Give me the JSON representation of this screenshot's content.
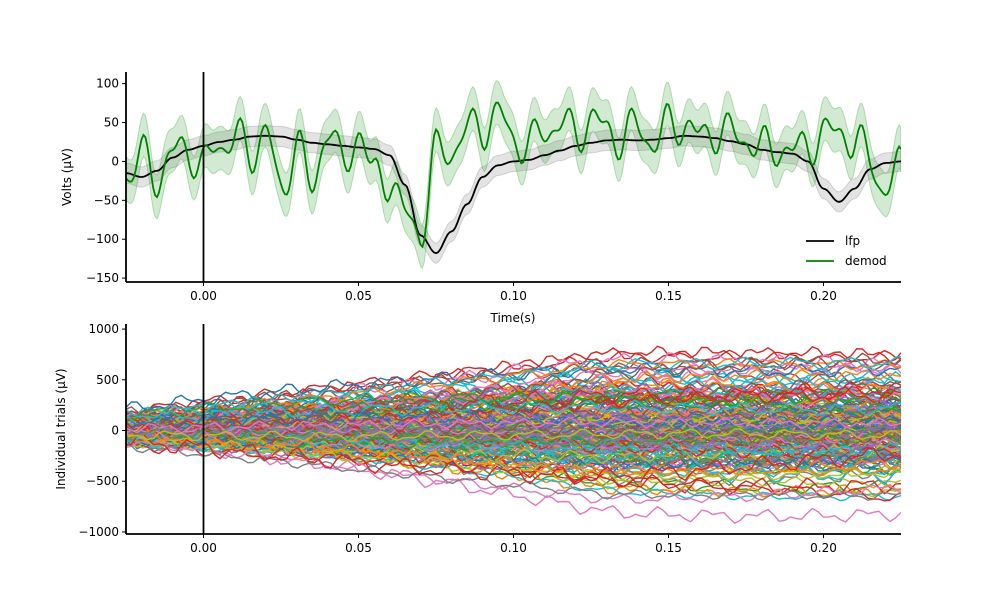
{
  "chart_data": [
    {
      "type": "line",
      "title": "",
      "xlabel": "Time(s)",
      "ylabel": "Volts (μV)",
      "xlim": [
        -0.025,
        0.225
      ],
      "ylim": [
        -155,
        115
      ],
      "xticks": [
        0.0,
        0.05,
        0.1,
        0.15,
        0.2
      ],
      "xtick_labels": [
        "0.00",
        "0.05",
        "0.10",
        "0.15",
        "0.20"
      ],
      "yticks": [
        100,
        50,
        0,
        -50,
        -100,
        -150
      ],
      "ytick_labels": [
        "100",
        "50",
        "0",
        "−50",
        "−100",
        "−150"
      ],
      "vline_x": 0.0,
      "legend_position": "lower-right",
      "grid": false,
      "series": [
        {
          "name": "lfp",
          "color": "#000000",
          "band_color": "#808080",
          "band_width": 13,
          "x": [
            -0.025,
            -0.02,
            -0.015,
            -0.01,
            -0.005,
            0.0,
            0.005,
            0.01,
            0.015,
            0.02,
            0.025,
            0.03,
            0.035,
            0.04,
            0.045,
            0.05,
            0.055,
            0.06,
            0.065,
            0.07,
            0.075,
            0.08,
            0.085,
            0.09,
            0.095,
            0.1,
            0.105,
            0.11,
            0.115,
            0.12,
            0.125,
            0.13,
            0.135,
            0.14,
            0.145,
            0.15,
            0.155,
            0.16,
            0.165,
            0.17,
            0.175,
            0.18,
            0.185,
            0.19,
            0.195,
            0.2,
            0.205,
            0.21,
            0.215,
            0.22,
            0.225
          ],
          "values": [
            -15,
            -20,
            -12,
            5,
            15,
            20,
            25,
            28,
            32,
            33,
            32,
            28,
            24,
            22,
            20,
            18,
            16,
            8,
            -30,
            -95,
            -118,
            -90,
            -55,
            -20,
            -5,
            0,
            2,
            8,
            14,
            20,
            24,
            27,
            28,
            27,
            28,
            30,
            33,
            32,
            30,
            26,
            22,
            15,
            12,
            10,
            0,
            -35,
            -52,
            -35,
            -10,
            -2,
            0
          ]
        },
        {
          "name": "demod",
          "color": "#008000",
          "band_color": "#2ca02c",
          "band_width": 28,
          "x": [
            -0.025,
            -0.02,
            -0.015,
            -0.01,
            -0.005,
            0.0,
            0.005,
            0.01,
            0.015,
            0.02,
            0.025,
            0.03,
            0.035,
            0.04,
            0.045,
            0.05,
            0.055,
            0.06,
            0.065,
            0.07,
            0.075,
            0.08,
            0.085,
            0.09,
            0.095,
            0.1,
            0.105,
            0.11,
            0.115,
            0.12,
            0.125,
            0.13,
            0.135,
            0.14,
            0.145,
            0.15,
            0.155,
            0.16,
            0.165,
            0.17,
            0.175,
            0.18,
            0.185,
            0.19,
            0.195,
            0.2,
            0.205,
            0.21,
            0.215,
            0.22,
            0.225
          ],
          "values": [
            -15,
            5,
            -20,
            10,
            15,
            -5,
            20,
            35,
            5,
            45,
            -45,
            30,
            -40,
            50,
            -10,
            40,
            -20,
            -20,
            -70,
            -90,
            10,
            15,
            40,
            45,
            60,
            30,
            20,
            40,
            50,
            35,
            55,
            40,
            30,
            45,
            25,
            45,
            50,
            30,
            40,
            35,
            30,
            15,
            20,
            10,
            25,
            30,
            45,
            20,
            10,
            -45,
            0
          ],
          "oscillation_amplitude": 35
        }
      ]
    },
    {
      "type": "line",
      "title": "",
      "xlabel": "",
      "ylabel": "Individual trials (μV)",
      "xlim": [
        -0.025,
        0.225
      ],
      "ylim": [
        -1020,
        1050
      ],
      "xticks": [
        0.0,
        0.05,
        0.1,
        0.15,
        0.2
      ],
      "xtick_labels": [
        "0.00",
        "0.05",
        "0.10",
        "0.15",
        "0.20"
      ],
      "yticks": [
        1000,
        500,
        0,
        -500,
        -1000
      ],
      "ytick_labels": [
        "1000",
        "500",
        "0",
        "−500",
        "−1000"
      ],
      "vline_x": 0.0,
      "grid": false,
      "n_trials": 200,
      "trial_spread_start": 100,
      "trial_spread_end": 420,
      "max_abs_value": 950,
      "colors": [
        "#1f77b4",
        "#ff7f0e",
        "#2ca02c",
        "#d62728",
        "#9467bd",
        "#8c564b",
        "#e377c2",
        "#7f7f7f",
        "#bcbd22",
        "#17becf"
      ]
    }
  ]
}
